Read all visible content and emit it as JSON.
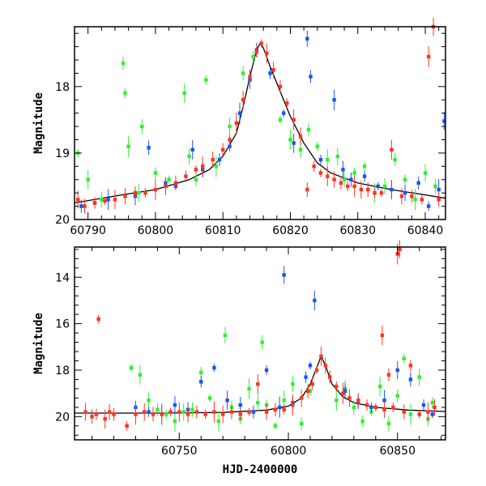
{
  "figure": {
    "xlabel": "HJD-2400000"
  },
  "colors": {
    "green": "#33ee33",
    "blue": "#1a55ee",
    "red": "#ff3322",
    "model": "#000000"
  },
  "chart_data": [
    {
      "type": "scatter",
      "panel": "top",
      "xlabel": "",
      "ylabel": "Magnitude",
      "xlim": [
        60788,
        60843
      ],
      "ylim": [
        20,
        17.1
      ],
      "y_inverted": true,
      "xticks": [
        60790,
        60800,
        60810,
        60820,
        60830,
        60840
      ],
      "yticks": [
        18,
        19,
        20
      ],
      "grid": false,
      "legend": "none",
      "model_curve": {
        "x": [
          60788,
          60795,
          60800,
          60805,
          60808,
          60810,
          60812,
          60813,
          60814,
          60815,
          60815.5,
          60816,
          60817,
          60818,
          60819,
          60820,
          60822,
          60824,
          60826,
          60830,
          60835,
          60840,
          60843
        ],
        "y": [
          19.75,
          19.63,
          19.55,
          19.4,
          19.25,
          19.05,
          18.7,
          18.3,
          17.85,
          17.45,
          17.35,
          17.42,
          17.7,
          17.95,
          18.2,
          18.45,
          18.85,
          19.15,
          19.3,
          19.45,
          19.55,
          19.63,
          19.68
        ]
      },
      "series": [
        {
          "name": "",
          "color": "green",
          "x": [
            60788.5,
            60790,
            60792,
            60795.2,
            60795.5,
            60796,
            60797.5,
            60798,
            60800,
            60802,
            60804.3,
            60805,
            60806,
            60807.5,
            60809,
            60811,
            60813,
            60814.5,
            60818.5,
            60820,
            60821.5,
            60822.7,
            60824,
            60825.5,
            60827,
            60828,
            60829.5,
            60831,
            60832.5,
            60834,
            60835.5,
            60837,
            60838.5,
            60840,
            60841.5
          ],
          "y": [
            19.0,
            19.4,
            19.7,
            17.65,
            18.1,
            18.9,
            19.6,
            18.6,
            19.3,
            19.4,
            18.1,
            19.05,
            19.4,
            17.9,
            19.2,
            18.6,
            17.8,
            17.55,
            18.5,
            18.8,
            18.95,
            18.65,
            18.9,
            19.1,
            19.05,
            19.4,
            19.3,
            19.2,
            19.6,
            19.5,
            19.1,
            19.4,
            19.7,
            19.3,
            19.5
          ]
        },
        {
          "name": "",
          "color": "blue",
          "x": [
            60789,
            60791,
            60793,
            60797,
            60799,
            60801.5,
            60803,
            60805.5,
            60807,
            60809.5,
            60811,
            60812.5,
            60814,
            60815,
            60817,
            60819,
            60820.5,
            60822.5,
            60823,
            60824.5,
            60826.5,
            60827.8,
            60829,
            60831,
            60833,
            60835,
            60837,
            60839,
            60840.5,
            60842,
            60842.8
          ],
          "y": [
            19.8,
            19.75,
            19.7,
            19.65,
            18.92,
            19.45,
            19.5,
            18.95,
            19.25,
            19.1,
            18.9,
            18.4,
            17.9,
            17.45,
            17.8,
            18.4,
            18.85,
            17.28,
            17.85,
            19.1,
            18.2,
            19.25,
            19.4,
            19.35,
            19.5,
            19.55,
            19.6,
            19.45,
            19.8,
            19.55,
            18.52
          ]
        },
        {
          "name": "",
          "color": "red",
          "x": [
            60788.5,
            60789.5,
            60791,
            60792.5,
            60794,
            60795.5,
            60797,
            60798.5,
            60800,
            60801.5,
            60803,
            60804.5,
            60806,
            60807,
            60808.5,
            60810,
            60811,
            60812,
            60813,
            60814,
            60815,
            60815.7,
            60816.5,
            60817.5,
            60818.5,
            60819.5,
            60820.5,
            60821.5,
            60822.5,
            60823.5,
            60824.5,
            60825.5,
            60826.5,
            60827.5,
            60828.5,
            60829.5,
            60830.5,
            60831.5,
            60832.5,
            60833.5,
            60835,
            60836.5,
            60838,
            60839.5,
            60840.5,
            60841.2,
            60842
          ],
          "y": [
            19.7,
            19.8,
            19.75,
            19.72,
            19.7,
            19.65,
            19.6,
            19.6,
            19.55,
            19.5,
            19.45,
            19.35,
            19.25,
            19.2,
            19.1,
            18.95,
            18.8,
            18.55,
            18.2,
            17.85,
            17.48,
            17.35,
            17.5,
            17.75,
            18.0,
            18.25,
            18.5,
            18.75,
            19.55,
            19.2,
            19.3,
            19.35,
            19.4,
            19.45,
            19.5,
            19.5,
            19.55,
            19.55,
            19.6,
            19.6,
            18.95,
            19.65,
            19.65,
            19.7,
            17.55,
            17.1,
            19.7
          ]
        }
      ]
    },
    {
      "type": "scatter",
      "panel": "bottom",
      "xlabel": "HJD-2400000",
      "ylabel": "Magnitude",
      "xlim": [
        60702,
        60872
      ],
      "ylim": [
        21,
        12.7
      ],
      "y_inverted": true,
      "xticks": [
        60750,
        60800,
        60850
      ],
      "yticks": [
        14,
        16,
        18,
        20
      ],
      "grid": false,
      "legend": "none",
      "model_curve": {
        "x": [
          60702,
          60740,
          60770,
          60790,
          60800,
          60806,
          60810,
          60813,
          60815,
          60817,
          60820,
          60825,
          60830,
          60840,
          60855,
          60872
        ],
        "y": [
          19.85,
          19.85,
          19.82,
          19.72,
          19.55,
          19.2,
          18.6,
          17.9,
          17.4,
          17.8,
          18.6,
          19.15,
          19.4,
          19.6,
          19.72,
          19.78
        ]
      },
      "series": [
        {
          "name": "",
          "color": "green",
          "x": [
            60728,
            60732,
            60736,
            60740,
            60744,
            60748,
            60752,
            60756,
            60760,
            60764,
            60768,
            60771,
            60774,
            60778,
            60782,
            60786,
            60788,
            60790,
            60794,
            60798,
            60802,
            60806,
            60810,
            60822,
            60826,
            60830,
            60834,
            60838,
            60842,
            60846,
            60850,
            60853,
            60856,
            60860,
            60864,
            60866
          ],
          "y": [
            17.9,
            18.2,
            19.3,
            19.7,
            19.9,
            20.2,
            19.8,
            19.7,
            18.1,
            19.2,
            20.2,
            16.5,
            19.6,
            20.1,
            18.8,
            19.4,
            16.8,
            19.5,
            20.4,
            19.3,
            18.6,
            20.3,
            18.9,
            19.3,
            18.8,
            19.6,
            20.2,
            19.8,
            18.7,
            20.3,
            19.1,
            17.5,
            19.9,
            18.3,
            20.1,
            19.4
          ]
        },
        {
          "name": "",
          "color": "blue",
          "x": [
            60730,
            60736,
            60742,
            60748,
            60754,
            60760,
            60766,
            60772,
            60778,
            60784,
            60790,
            60796,
            60798,
            60802,
            60808,
            60810,
            60812,
            60826,
            60832,
            60838,
            60844,
            60850,
            60856,
            60862,
            60866
          ],
          "y": [
            19.6,
            19.8,
            19.9,
            19.5,
            19.7,
            18.5,
            17.9,
            19.3,
            19.5,
            19.8,
            18.0,
            19.6,
            13.9,
            19.4,
            18.3,
            17.8,
            15.0,
            18.9,
            19.4,
            19.6,
            19.3,
            18.0,
            18.4,
            19.5,
            19.9
          ]
        },
        {
          "name": "",
          "color": "red",
          "x": [
            60707,
            60710,
            60712,
            60713,
            60716,
            60718,
            60720,
            60726,
            60730,
            60734,
            60738,
            60742,
            60746,
            60750,
            60754,
            60758,
            60762,
            60766,
            60770,
            60774,
            60778,
            60782,
            60786,
            60790,
            60794,
            60798,
            60802,
            60806,
            60809,
            60811,
            60813,
            60815,
            60817,
            60819,
            60822,
            60825,
            60828,
            60832,
            60836,
            60840,
            60843,
            60844,
            60846,
            60848,
            60850,
            60851,
            60853,
            60856,
            60860,
            60864,
            60867
          ],
          "y": [
            19.8,
            20.0,
            19.9,
            15.8,
            20.1,
            19.8,
            19.9,
            20.4,
            19.9,
            19.8,
            19.9,
            19.9,
            19.8,
            19.8,
            19.9,
            19.8,
            19.9,
            19.8,
            19.9,
            19.8,
            19.9,
            19.8,
            18.6,
            19.8,
            19.7,
            19.7,
            19.5,
            19.2,
            18.9,
            18.6,
            18.0,
            17.4,
            17.8,
            18.3,
            18.7,
            19.0,
            19.2,
            19.3,
            19.5,
            19.6,
            16.5,
            19.7,
            18.2,
            19.6,
            13.0,
            12.8,
            19.8,
            17.8,
            19.9,
            19.8,
            19.6
          ]
        }
      ]
    }
  ]
}
